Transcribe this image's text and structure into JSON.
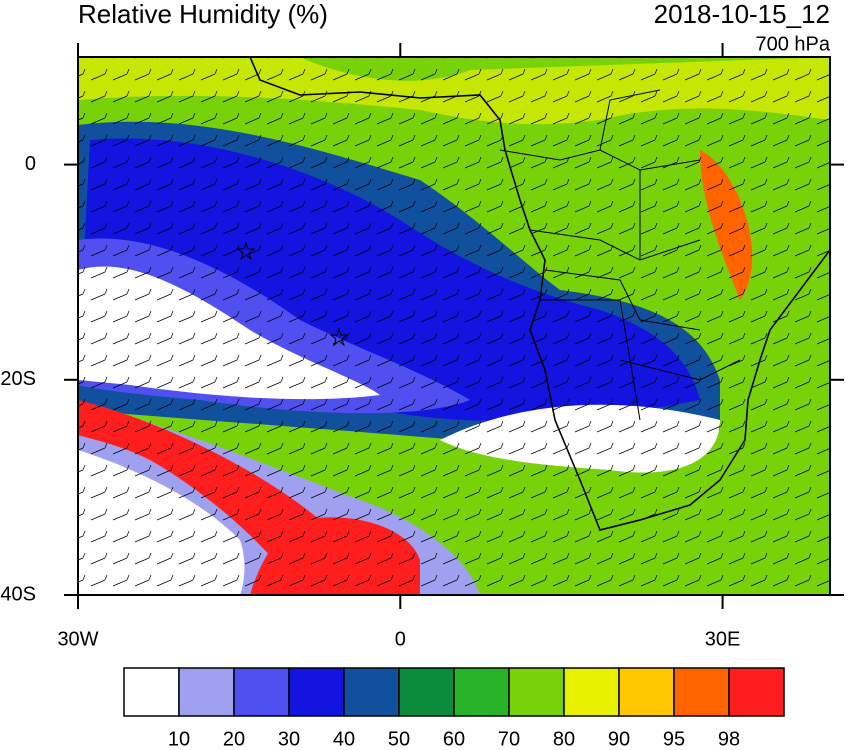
{
  "header": {
    "title": "Relative Humidity (%)",
    "datetime": "2018-10-15_12",
    "level": "700 hPa"
  },
  "map": {
    "lat_range": [
      -40,
      10
    ],
    "lon_range": [
      -30,
      40
    ],
    "lat_ticks": [
      {
        "value": 0,
        "label": "0"
      },
      {
        "value": -20,
        "label": "20S"
      },
      {
        "value": -40,
        "label": "40S"
      }
    ],
    "lon_ticks": [
      {
        "value": -30,
        "label": "30W"
      },
      {
        "value": 0,
        "label": "0"
      },
      {
        "value": 30,
        "label": "30E"
      }
    ]
  },
  "colorbar": {
    "levels": [
      10,
      20,
      30,
      40,
      50,
      60,
      70,
      80,
      90,
      95,
      98
    ],
    "colors": [
      "#ffffff",
      "#a0a0f0",
      "#5050f0",
      "#1414e0",
      "#10509c",
      "#0a8c3c",
      "#28b428",
      "#78d20a",
      "#e6f000",
      "#ffc800",
      "#ff6400",
      "#ff1e1e"
    ]
  }
}
